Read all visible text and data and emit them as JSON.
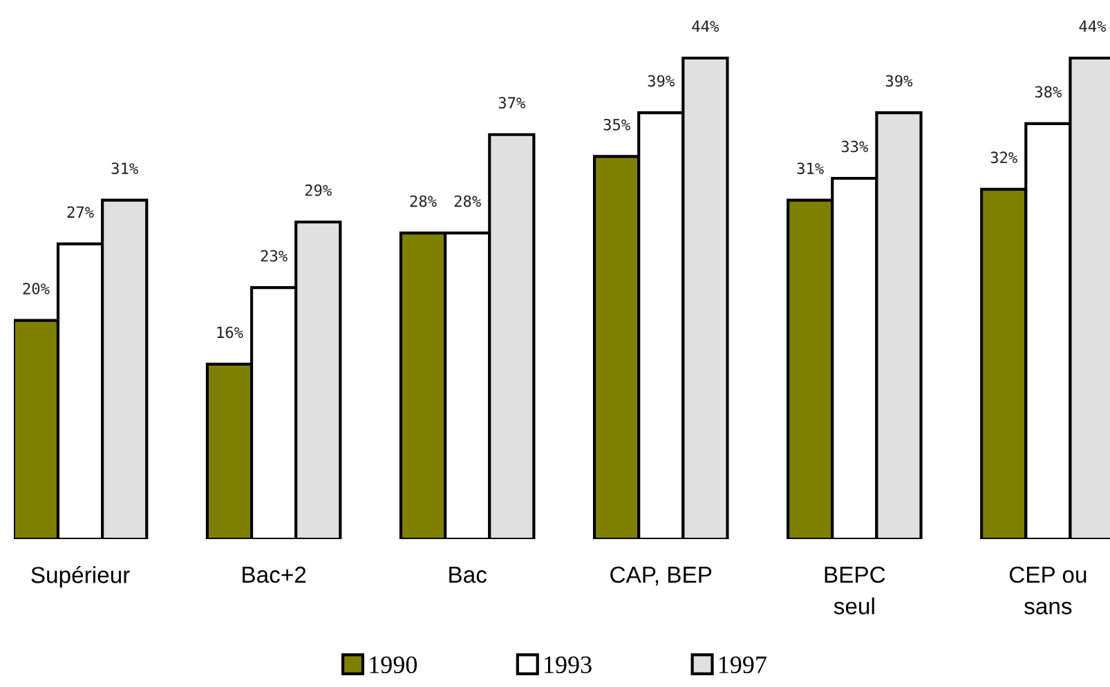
{
  "chart_data": {
    "type": "bar",
    "categories": [
      "Supérieur",
      "Bac+2",
      "Bac",
      "CAP, BEP",
      "BEPC\nseul",
      "CEP ou\nsans"
    ],
    "series": [
      {
        "name": "1990",
        "color": "#808000",
        "values": [
          20,
          16,
          28,
          35,
          31,
          32
        ],
        "value_labels": [
          "20%",
          "16%",
          "28%",
          "35%",
          "31%",
          "32%"
        ]
      },
      {
        "name": "1993",
        "color": "#ffffff",
        "values": [
          27,
          23,
          28,
          39,
          33,
          38
        ],
        "value_labels": [
          "27%",
          "23%",
          "28%",
          "39%",
          "33%",
          "38%"
        ]
      },
      {
        "name": "1997",
        "color": "#e0e0e0",
        "values": [
          31,
          29,
          37,
          44,
          39,
          44
        ],
        "value_labels": [
          "31%",
          "29%",
          "37%",
          "44%",
          "39%",
          "44%"
        ]
      }
    ],
    "grid": false,
    "legend": "bottom"
  }
}
